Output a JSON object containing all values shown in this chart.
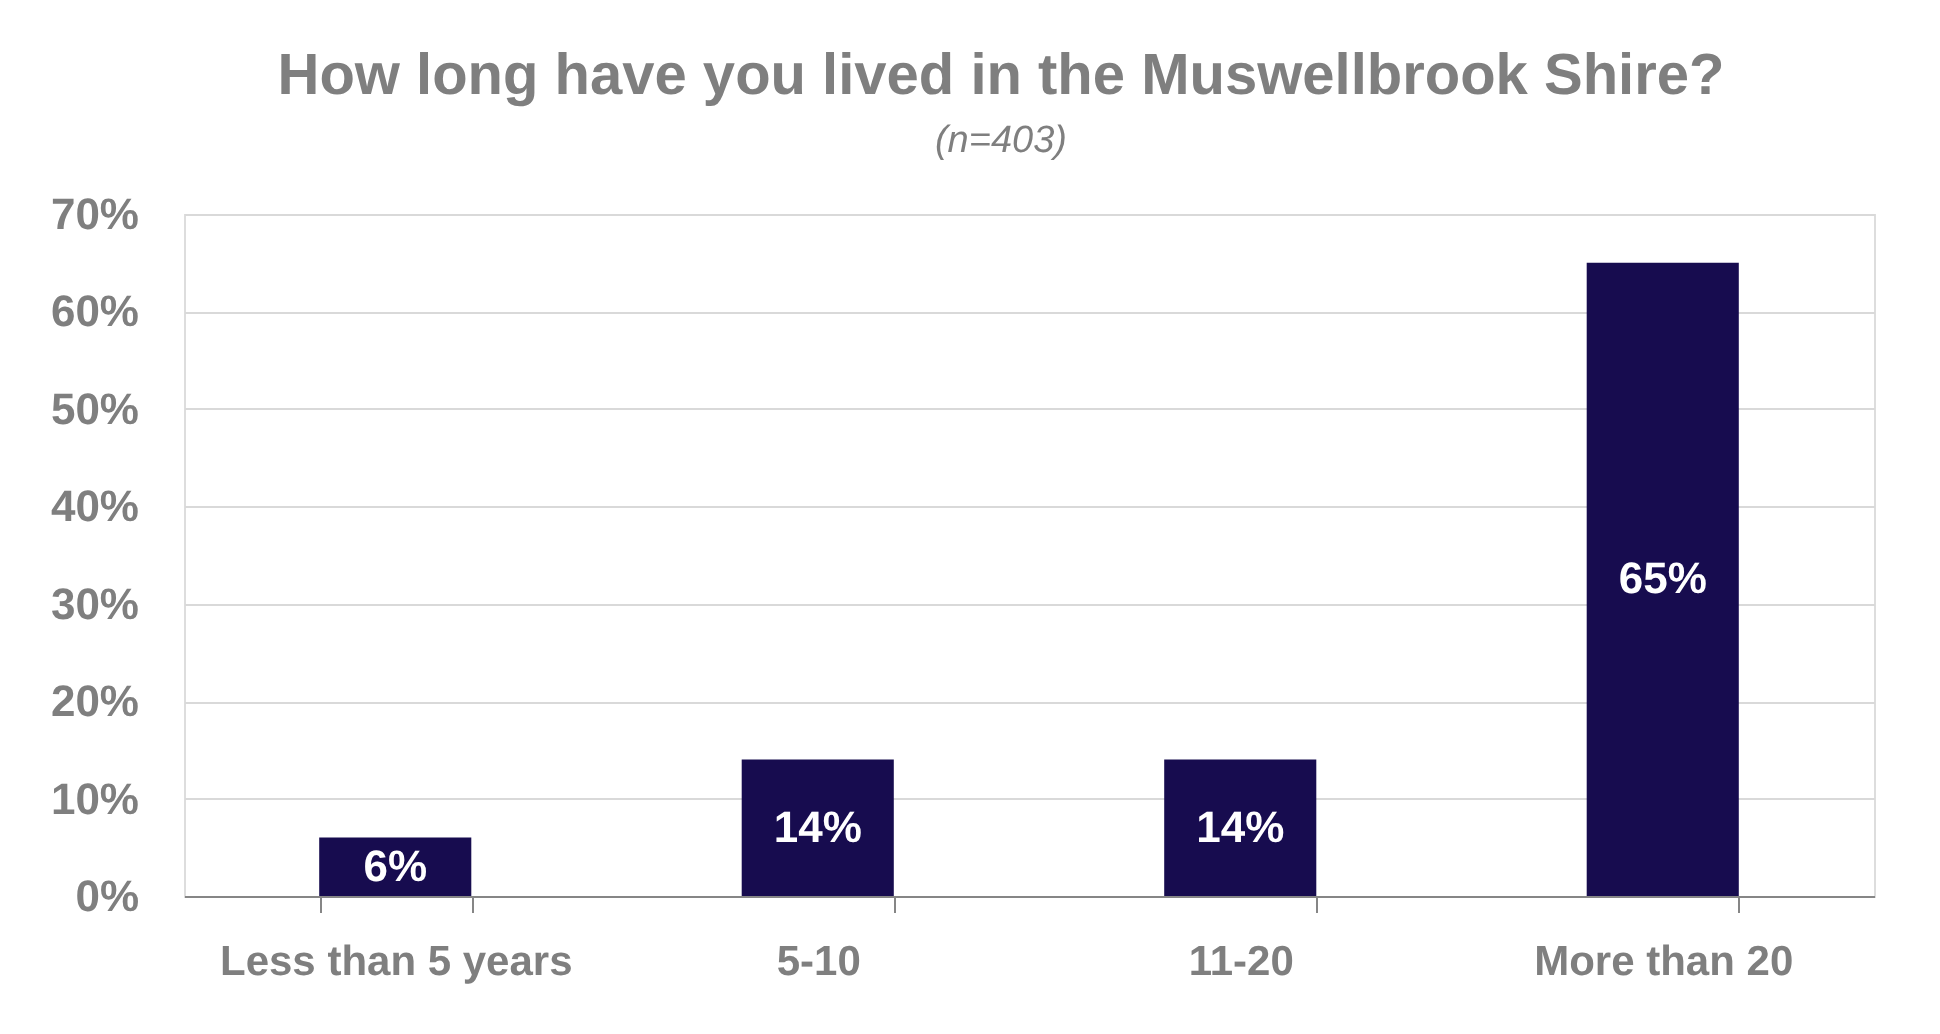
{
  "chart_data": {
    "type": "bar",
    "title": "How long have you lived in the Muswellbrook Shire?",
    "subtitle": "(n=403)",
    "categories": [
      "Less than 5 years",
      "5-10",
      "11-20",
      "More than 20"
    ],
    "values": [
      6,
      14,
      14,
      65
    ],
    "color": "#170c4f",
    "value_labels": [
      "6%",
      "14%",
      "14%",
      "65%"
    ],
    "ylim": [
      0,
      70
    ],
    "yticks": [
      {
        "value": 0,
        "label": "0%"
      },
      {
        "value": 10,
        "label": "10%"
      },
      {
        "value": 20,
        "label": "20%"
      },
      {
        "value": 30,
        "label": "30%"
      },
      {
        "value": 40,
        "label": "40%"
      },
      {
        "value": 50,
        "label": "50%"
      },
      {
        "value": 60,
        "label": "60%"
      },
      {
        "value": 70,
        "label": "70%"
      }
    ],
    "grid": "y"
  }
}
